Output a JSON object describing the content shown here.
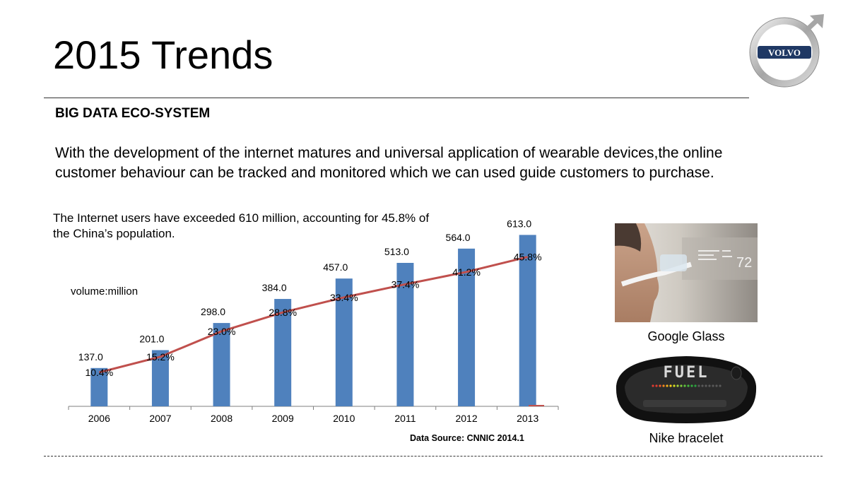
{
  "slide": {
    "title": "2015 Trends",
    "section_heading": "BIG DATA ECO-SYSTEM",
    "body": "With the development of the internet matures and universal application of wearable devices,the online customer behaviour can be tracked and monitored which we can used guide customers to purchase.",
    "chart_note": "The Internet users have exceeded 610 million, accounting for 45.8% of the China’s population.",
    "unit_label": "volume:million",
    "source": "Data Source: CNNIC 2014.1",
    "logo_text": "VOLVO",
    "photos": [
      {
        "caption": "Google Glass",
        "overlay_text": "72"
      },
      {
        "caption": "Nike bracelet",
        "overlay_text": "FUEL"
      }
    ]
  },
  "colors": {
    "bar": "#4f81bd",
    "line": "#c0504d",
    "axis": "#7f7f7f"
  },
  "chart_data": {
    "type": "bar",
    "categories": [
      "2006",
      "2007",
      "2008",
      "2009",
      "2010",
      "2011",
      "2012",
      "2013"
    ],
    "series": [
      {
        "values": [
          137.0,
          201.0,
          298.0,
          384.0,
          457.0,
          513.0,
          564.0,
          613.0
        ],
        "labels": [
          "137.0",
          "201.0",
          "298.0",
          "384.0",
          "457.0",
          "513.0",
          "564.0",
          "613.0"
        ]
      },
      {
        "type": "line",
        "values": [
          10.4,
          15.2,
          23.0,
          28.8,
          33.4,
          37.4,
          41.2,
          45.8
        ],
        "labels": [
          "10.4%",
          "15.2%",
          "23.0%",
          "28.8%",
          "33.4%",
          "37.4%",
          "41.2%",
          "45.8%"
        ]
      }
    ],
    "ylim": [
      0,
      700
    ],
    "y2lim": [
      0,
      60
    ],
    "grid": false,
    "legend": "none"
  }
}
